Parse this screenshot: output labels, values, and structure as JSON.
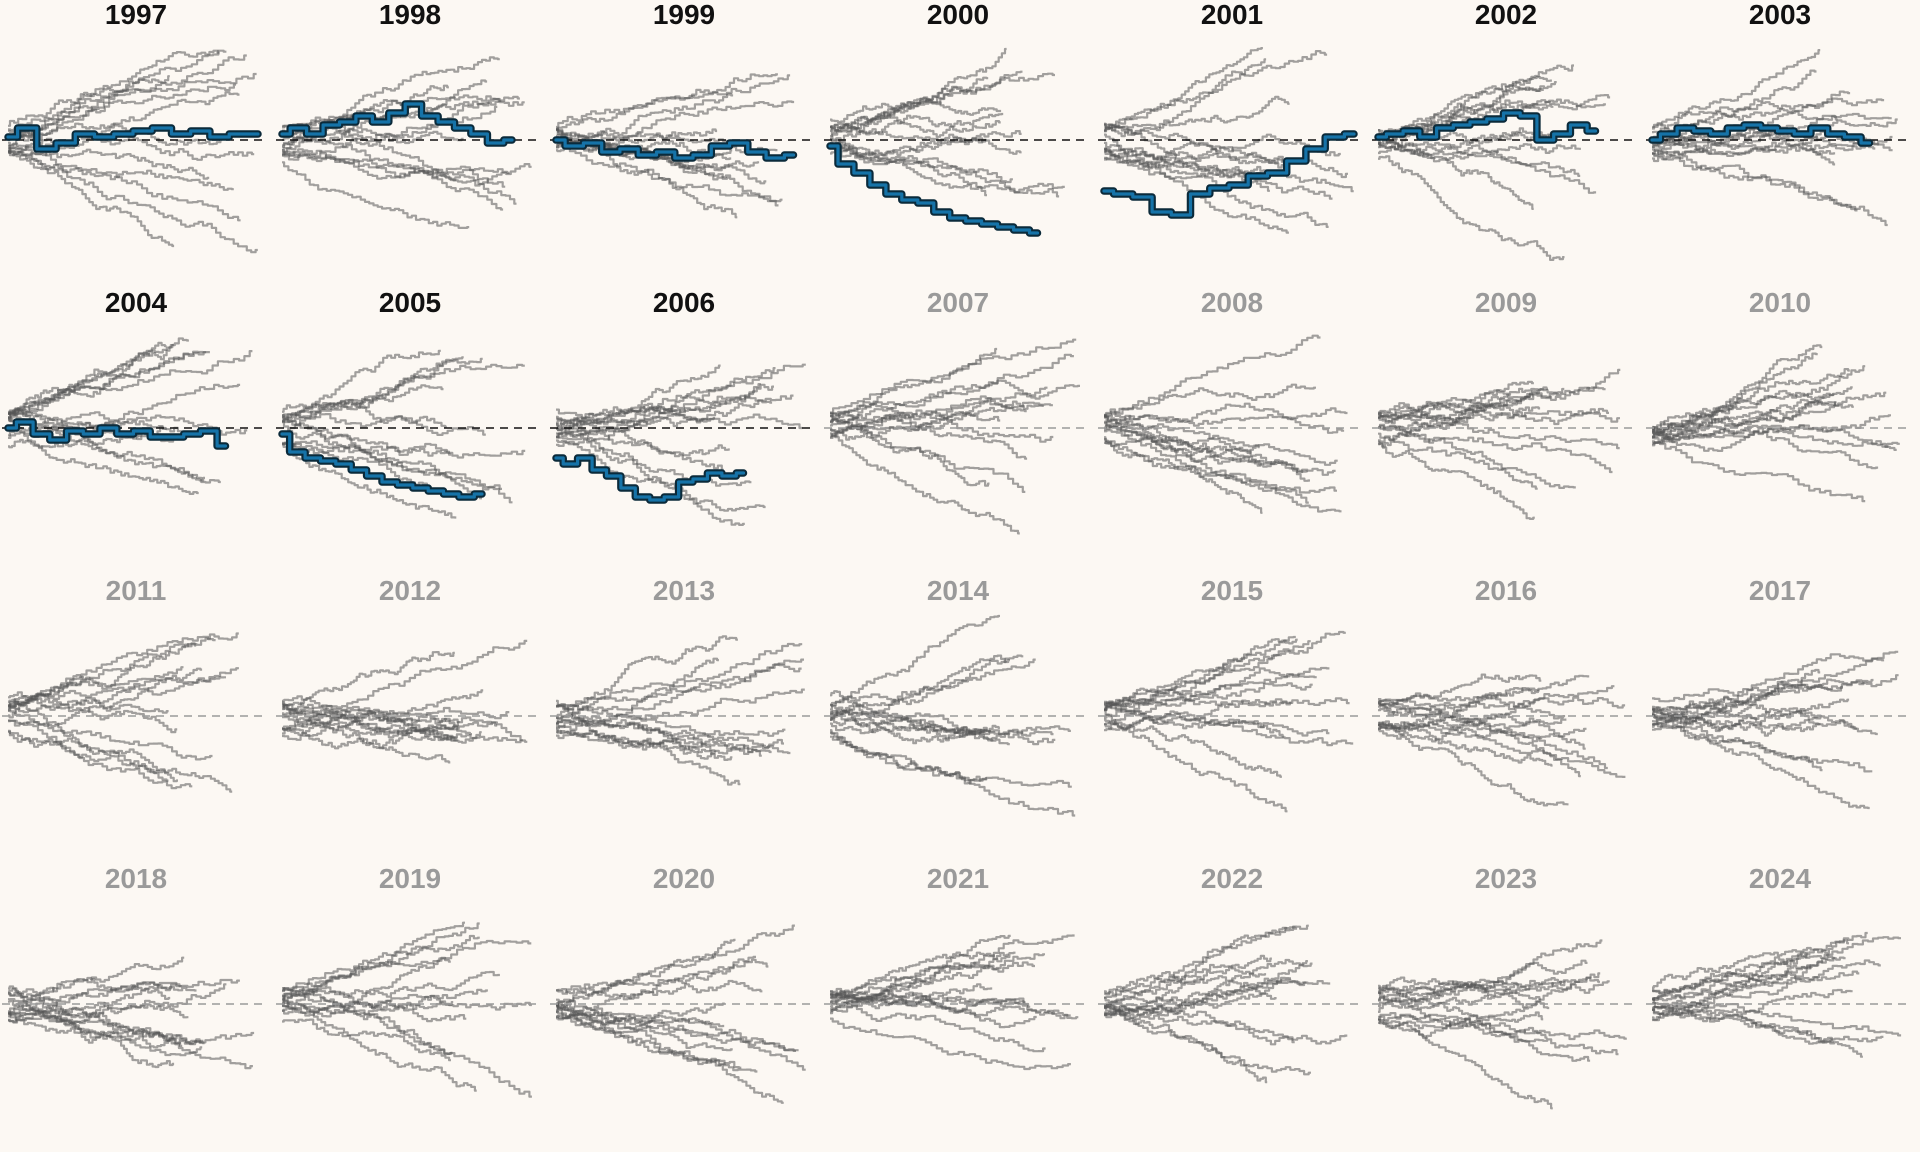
{
  "colors": {
    "background": "#fcf8f3",
    "title_active": "#111111",
    "title_inactive": "#9a9a9a",
    "zero_line_active": "#111111",
    "zero_line_inactive": "#9a9a9a",
    "background_lines": "#555555",
    "highlight_line": "#1673a8",
    "highlight_halo": "#0b2a3a"
  },
  "chart_data": {
    "type": "line",
    "layout": "small-multiples",
    "columns": 7,
    "reference_line": "dashed horizontal line at 0",
    "title": "",
    "xlabel": "",
    "ylabel": "",
    "panels": [
      {
        "year": "1997",
        "active": true,
        "highlight": [
          0.05,
          0.2,
          -0.15,
          -0.05,
          0.1,
          0.05,
          0.1,
          0.15,
          0.2,
          0.1,
          0.15,
          0.05,
          0.1,
          0.1
        ],
        "highlight_start": 0.0,
        "highlight_end": 1.0
      },
      {
        "year": "1998",
        "active": true,
        "highlight": [
          0.1,
          0.2,
          0.1,
          0.25,
          0.3,
          0.4,
          0.3,
          0.45,
          0.6,
          0.4,
          0.3,
          0.2,
          0.1,
          -0.05,
          0.0
        ],
        "highlight_start": 0.0,
        "highlight_end": 0.92
      },
      {
        "year": "1999",
        "active": true,
        "highlight": [
          0.0,
          -0.1,
          -0.05,
          -0.2,
          -0.15,
          -0.25,
          -0.2,
          -0.3,
          -0.25,
          -0.1,
          -0.05,
          -0.2,
          -0.3,
          -0.25
        ],
        "highlight_start": 0.0,
        "highlight_end": 0.95
      },
      {
        "year": "2000",
        "active": true,
        "highlight": [
          -0.1,
          -0.4,
          -0.55,
          -0.75,
          -0.9,
          -1.0,
          -1.05,
          -1.2,
          -1.3,
          -1.35,
          -1.4,
          -1.45,
          -1.5,
          -1.55
        ],
        "highlight_start": 0.0,
        "highlight_end": 0.83
      },
      {
        "year": "2001",
        "active": true,
        "highlight": [
          -0.85,
          -0.9,
          -0.95,
          -1.2,
          -1.25,
          -0.9,
          -0.8,
          -0.75,
          -0.6,
          -0.55,
          -0.35,
          -0.15,
          0.05,
          0.1
        ],
        "highlight_start": 0.0,
        "highlight_end": 1.0
      },
      {
        "year": "2002",
        "active": true,
        "highlight": [
          0.05,
          0.1,
          0.15,
          0.05,
          0.2,
          0.25,
          0.3,
          0.35,
          0.45,
          0.4,
          0.0,
          0.1,
          0.25,
          0.15
        ],
        "highlight_start": 0.0,
        "highlight_end": 0.87
      },
      {
        "year": "2003",
        "active": true,
        "highlight": [
          0.0,
          0.1,
          0.2,
          0.15,
          0.1,
          0.2,
          0.25,
          0.2,
          0.15,
          0.1,
          0.2,
          0.1,
          0.05,
          -0.05
        ],
        "highlight_start": 0.0,
        "highlight_end": 0.87
      },
      {
        "year": "2004",
        "active": true,
        "highlight": [
          0.0,
          0.1,
          -0.1,
          -0.2,
          -0.05,
          -0.1,
          0.0,
          -0.1,
          -0.05,
          -0.15,
          -0.15,
          -0.1,
          -0.05,
          -0.3
        ],
        "highlight_start": 0.0,
        "highlight_end": 0.87
      },
      {
        "year": "2005",
        "active": true,
        "highlight": [
          -0.1,
          -0.4,
          -0.5,
          -0.55,
          -0.6,
          -0.7,
          -0.8,
          -0.9,
          -0.95,
          -1.0,
          -1.05,
          -1.1,
          -1.15,
          -1.1
        ],
        "highlight_start": 0.0,
        "highlight_end": 0.8
      },
      {
        "year": "2006",
        "active": true,
        "highlight": [
          -0.5,
          -0.6,
          -0.5,
          -0.7,
          -0.8,
          -1.0,
          -1.15,
          -1.2,
          -1.15,
          -0.9,
          -0.85,
          -0.75,
          -0.8,
          -0.75
        ],
        "highlight_start": 0.0,
        "highlight_end": 0.75
      },
      {
        "year": "2007",
        "active": false
      },
      {
        "year": "2008",
        "active": false
      },
      {
        "year": "2009",
        "active": false
      },
      {
        "year": "2010",
        "active": false
      },
      {
        "year": "2011",
        "active": false
      },
      {
        "year": "2012",
        "active": false
      },
      {
        "year": "2013",
        "active": false
      },
      {
        "year": "2014",
        "active": false
      },
      {
        "year": "2015",
        "active": false
      },
      {
        "year": "2016",
        "active": false
      },
      {
        "year": "2017",
        "active": false
      },
      {
        "year": "2018",
        "active": false
      },
      {
        "year": "2019",
        "active": false
      },
      {
        "year": "2020",
        "active": false
      },
      {
        "year": "2021",
        "active": false
      },
      {
        "year": "2022",
        "active": false
      },
      {
        "year": "2023",
        "active": false
      },
      {
        "year": "2024",
        "active": false
      }
    ]
  }
}
